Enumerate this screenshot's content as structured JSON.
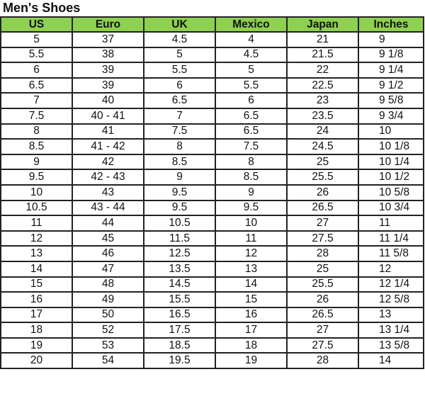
{
  "title": "Men's Shoes",
  "header_color": "#8ed04f",
  "columns": [
    "US",
    "Euro",
    "UK",
    "Mexico",
    "Japan",
    "Inches"
  ],
  "rows": [
    [
      "5",
      "37",
      "4.5",
      "4",
      "21",
      "9"
    ],
    [
      "5.5",
      "38",
      "5",
      "4.5",
      "21.5",
      "9 1/8"
    ],
    [
      "6",
      "39",
      "5.5",
      "5",
      "22",
      "9 1/4"
    ],
    [
      "6.5",
      "39",
      "6",
      "5.5",
      "22.5",
      "9 1/2"
    ],
    [
      "7",
      "40",
      "6.5",
      "6",
      "23",
      "9 5/8"
    ],
    [
      "7.5",
      "40 - 41",
      "7",
      "6.5",
      "23.5",
      "9 3/4"
    ],
    [
      "8",
      "41",
      "7.5",
      "6.5",
      "24",
      "10"
    ],
    [
      "8.5",
      "41 - 42",
      "8",
      "7.5",
      "24.5",
      "10 1/8"
    ],
    [
      "9",
      "42",
      "8.5",
      "8",
      "25",
      "10 1/4"
    ],
    [
      "9.5",
      "42 - 43",
      "9",
      "8.5",
      "25.5",
      "10 1/2"
    ],
    [
      "10",
      "43",
      "9.5",
      "9",
      "26",
      "10 5/8"
    ],
    [
      "10.5",
      "43 - 44",
      "9.5",
      "9.5",
      "26.5",
      "10 3/4"
    ],
    [
      "11",
      "44",
      "10.5",
      "10",
      "27",
      "11"
    ],
    [
      "12",
      "45",
      "11.5",
      "11",
      "27.5",
      "11 1/4"
    ],
    [
      "13",
      "46",
      "12.5",
      "12",
      "28",
      "11 5/8"
    ],
    [
      "14",
      "47",
      "13.5",
      "13",
      "25",
      "12"
    ],
    [
      "15",
      "48",
      "14.5",
      "14",
      "25.5",
      "12 1/4"
    ],
    [
      "16",
      "49",
      "15.5",
      "15",
      "26",
      "12 5/8"
    ],
    [
      "17",
      "50",
      "16.5",
      "16",
      "26.5",
      "13"
    ],
    [
      "18",
      "52",
      "17.5",
      "17",
      "27",
      "13 1/4"
    ],
    [
      "19",
      "53",
      "18.5",
      "18",
      "27.5",
      "13 5/8"
    ],
    [
      "20",
      "54",
      "19.5",
      "19",
      "28",
      "14"
    ]
  ]
}
